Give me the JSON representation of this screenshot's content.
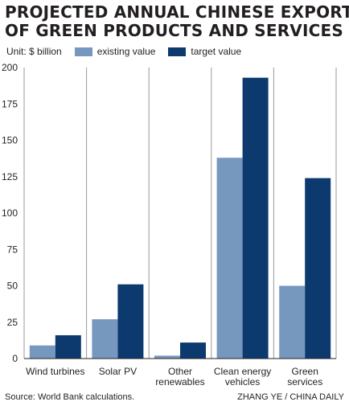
{
  "title": {
    "line1": "PROJECTED ANNUAL CHINESE EXPORTS",
    "line2": "OF GREEN PRODUCTS AND SERVICES"
  },
  "unit_label": "Unit: $ billion",
  "footer": {
    "source": "Source: World Bank calculations.",
    "credit": "ZHANG YE / CHINA DAILY"
  },
  "chart_data": {
    "type": "bar",
    "categories": [
      [
        "Wind turbines"
      ],
      [
        "Solar PV"
      ],
      [
        "Other",
        "renewables"
      ],
      [
        "Clean energy",
        "vehicles"
      ],
      [
        "Green",
        "services"
      ]
    ],
    "series": [
      {
        "name": "existing value",
        "color": "#7698bf",
        "values": [
          9,
          27,
          2,
          138,
          50
        ]
      },
      {
        "name": "target value",
        "color": "#0d3a6e",
        "values": [
          16,
          51,
          11,
          193,
          124
        ]
      }
    ],
    "yticks": [
      "0",
      "25",
      "50",
      "75",
      "100",
      "125",
      "150",
      "175",
      "200"
    ],
    "ylim": [
      0,
      200
    ],
    "grid": false,
    "legend_position": "top-left",
    "xlabel": "",
    "ylabel": ""
  }
}
